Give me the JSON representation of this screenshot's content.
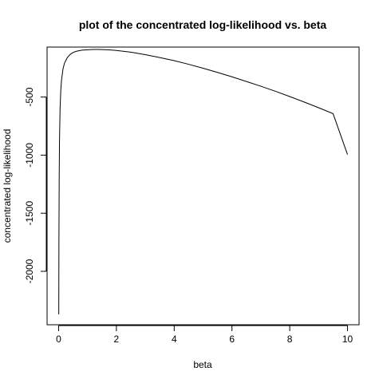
{
  "chart_data": {
    "type": "line",
    "title": "plot of the concentrated log-likelihood vs. beta",
    "xlabel": "beta",
    "ylabel": "concentrated log-likelihood",
    "xlim": [
      -0.4,
      10.4
    ],
    "ylim": [
      -2460,
      -70
    ],
    "x_ticks": [
      0,
      2,
      4,
      6,
      8,
      10
    ],
    "x_tick_labels": [
      "0",
      "2",
      "4",
      "6",
      "8",
      "10"
    ],
    "y_ticks": [
      -2000,
      -1500,
      -1000,
      -500
    ],
    "y_tick_labels": [
      "-2000",
      "-1500",
      "-1000",
      "-500"
    ],
    "grid": false,
    "legend": "none",
    "line_color": "#000000",
    "series": [
      {
        "x": [
          0.005,
          0.01,
          0.02,
          0.03,
          0.05,
          0.075,
          0.1,
          0.15,
          0.2,
          0.3,
          0.4,
          0.5,
          0.6,
          0.8,
          1.0,
          1.2,
          1.4,
          1.6,
          1.8,
          2.0,
          2.5,
          3.0,
          3.5,
          4.0,
          4.5,
          5.0,
          5.5,
          6.0,
          6.5,
          7.0,
          7.5,
          8.0,
          8.5,
          9.0,
          9.5,
          10.0
        ],
        "y": [
          -2370,
          -1760,
          -1180,
          -880,
          -600,
          -440,
          -355,
          -260,
          -210,
          -160,
          -133,
          -117,
          -107,
          -97,
          -93,
          -91,
          -91,
          -92,
          -95,
          -99,
          -114,
          -135,
          -160,
          -187,
          -218,
          -252,
          -288,
          -326,
          -366,
          -407,
          -450,
          -496,
          -543,
          -592,
          -643,
          -995
        ]
      }
    ]
  }
}
